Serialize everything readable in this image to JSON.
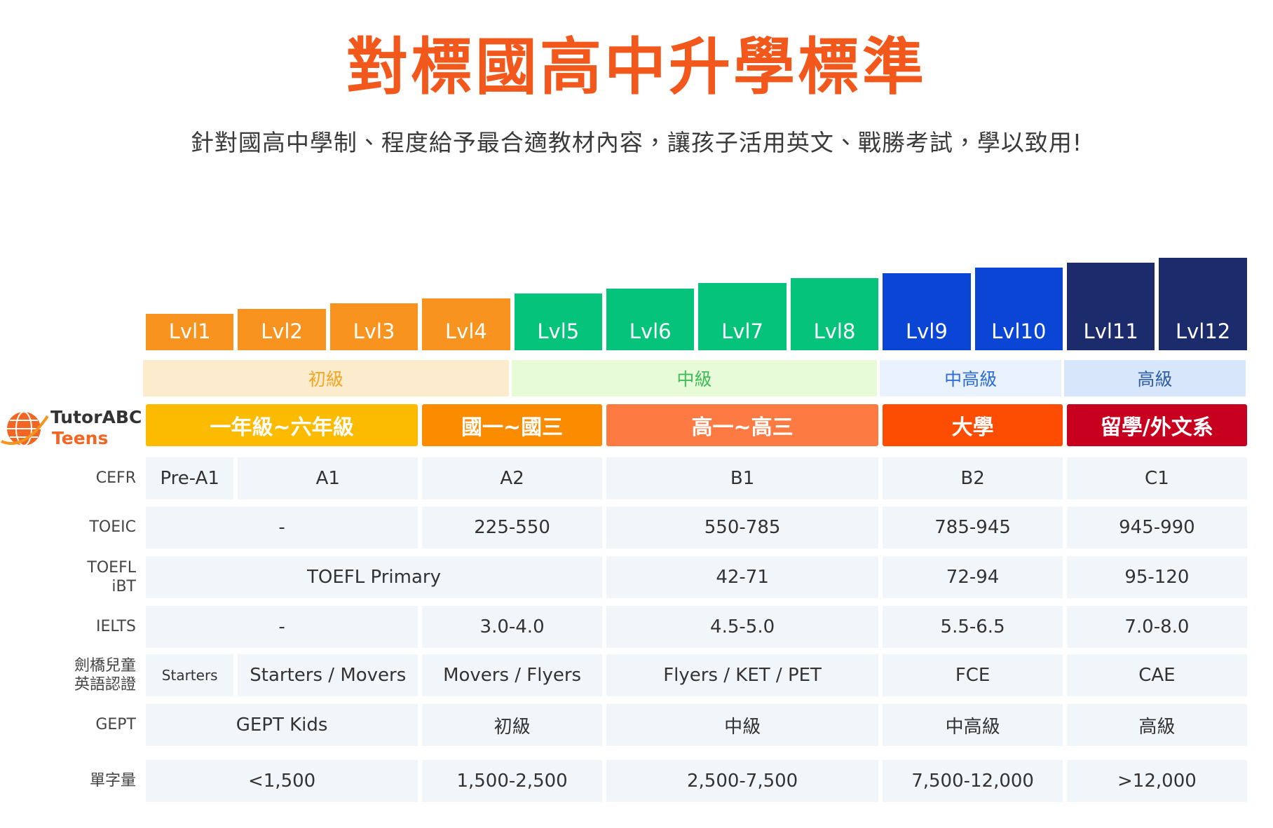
{
  "header": {
    "title": "對標國高中升學標準",
    "subtitle": "針對國高中學制、程度給予最合適教材內容，讓孩子活用英文、戰勝考試，學以致用!"
  },
  "logo": {
    "name": "TutorABC",
    "sub": "Teens"
  },
  "levels": [
    "Lvl1",
    "Lvl2",
    "Lvl3",
    "Lvl4",
    "Lvl5",
    "Lvl6",
    "Lvl7",
    "Lvl8",
    "Lvl9",
    "Lvl10",
    "Lvl11",
    "Lvl12"
  ],
  "tiers": [
    "初級",
    "中級",
    "中高級",
    "高級"
  ],
  "grades": [
    "一年級~六年級",
    "國一~國三",
    "高一~高三",
    "大學",
    "留學/外文系"
  ],
  "rows": [
    {
      "label": "CEFR",
      "cells": [
        "Pre-A1",
        "A1",
        "A2",
        "B1",
        "B2",
        "C1"
      ]
    },
    {
      "label": "TOEIC",
      "cells": [
        "-",
        "225-550",
        "550-785",
        "785-945",
        "945-990"
      ]
    },
    {
      "label": "TOEFL iBT",
      "cells": [
        "TOEFL Primary",
        "42-71",
        "72-94",
        "95-120"
      ]
    },
    {
      "label": "IELTS",
      "cells": [
        "-",
        "3.0-4.0",
        "4.5-5.0",
        "5.5-6.5",
        "7.0-8.0"
      ]
    },
    {
      "label": "劍橋兒童英語認證",
      "cells": [
        "Starters",
        "Starters / Movers",
        "Movers / Flyers",
        "Flyers / KET / PET",
        "FCE",
        "CAE"
      ]
    },
    {
      "label": "GEPT",
      "cells": [
        "GEPT Kids",
        "初級",
        "中級",
        "中高級",
        "高級"
      ]
    },
    {
      "label": "單字量",
      "cells": [
        "<1,500",
        "1,500-2,500",
        "2,500-7,500",
        "7,500-12,000",
        ">12,000"
      ]
    }
  ]
}
